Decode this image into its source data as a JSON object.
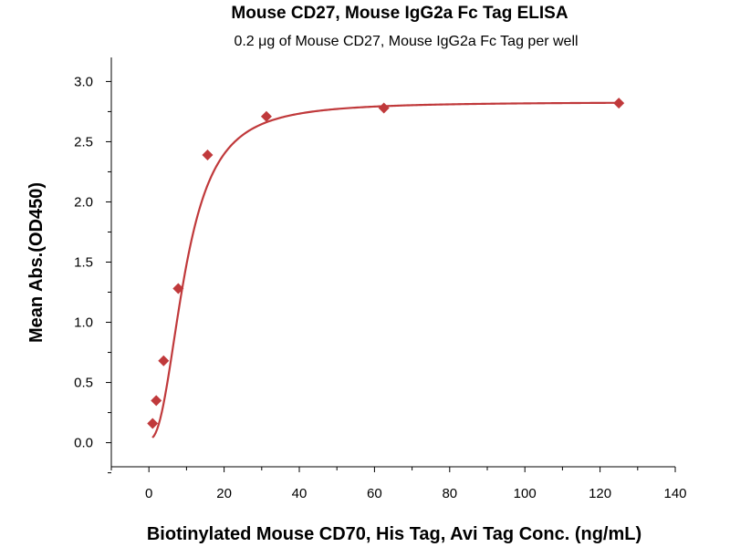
{
  "chart_data": {
    "type": "scatter",
    "title": "Mouse CD27, Mouse IgG2a Fc Tag ELISA",
    "subtitle": "0.2 μg of Mouse CD27, Mouse IgG2a Fc Tag per well",
    "xlabel": "Biotinylated Mouse CD70, His Tag, Avi Tag Conc. (ng/mL)",
    "ylabel": "Mean Abs.(OD450)",
    "xlim": [
      -10,
      140
    ],
    "ylim": [
      -0.2,
      3.2
    ],
    "x_ticks": [
      "0",
      "20",
      "40",
      "60",
      "80",
      "100",
      "120",
      "140"
    ],
    "y_ticks": [
      "0.0",
      "0.5",
      "1.0",
      "1.5",
      "2.0",
      "2.5",
      "3.0"
    ],
    "grid": false,
    "fit_curve": true,
    "color": "#c0393b",
    "series": [
      {
        "x": [
          0.98,
          1.95,
          3.9,
          7.8,
          15.6,
          31.25,
          62.5,
          125
        ],
        "y": [
          0.16,
          0.35,
          0.68,
          1.28,
          2.39,
          2.71,
          2.78,
          2.82
        ]
      }
    ]
  }
}
